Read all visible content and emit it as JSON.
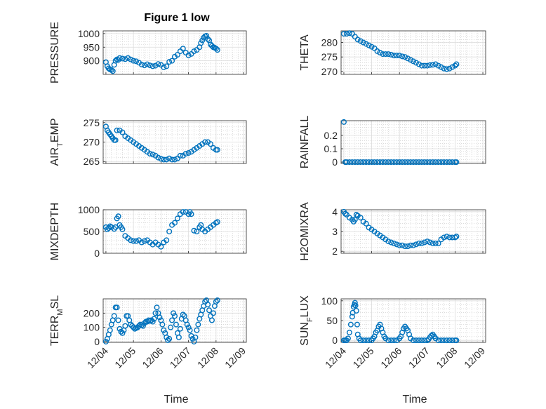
{
  "title": "Figure 1 low",
  "marker_color": "#0072BD",
  "xlabel": "Time",
  "xticks": [
    "12/04",
    "12/05",
    "12/06",
    "12/07",
    "12/08",
    "12/09"
  ],
  "chart_data": [
    {
      "type": "scatter",
      "ylabel": "PRESSURE",
      "ylim": [
        850,
        1010
      ],
      "yticks": [
        900,
        950,
        1000
      ],
      "x": [
        4.0,
        4.05,
        4.1,
        4.15,
        4.2,
        4.25,
        4.3,
        4.35,
        4.4,
        4.45,
        4.5,
        4.6,
        4.7,
        4.8,
        4.9,
        5.0,
        5.1,
        5.2,
        5.3,
        5.4,
        5.5,
        5.6,
        5.7,
        5.8,
        5.9,
        6.0,
        6.1,
        6.2,
        6.3,
        6.4,
        6.5,
        6.6,
        6.7,
        6.8,
        6.9,
        7.0,
        7.1,
        7.2,
        7.3,
        7.4,
        7.45,
        7.5,
        7.55,
        7.6,
        7.65,
        7.7,
        7.75,
        7.8,
        7.85,
        7.9,
        7.95,
        8.0,
        8.05
      ],
      "y": [
        895,
        880,
        872,
        868,
        866,
        862,
        885,
        900,
        905,
        903,
        910,
        908,
        906,
        910,
        905,
        900,
        898,
        893,
        886,
        883,
        887,
        883,
        880,
        882,
        888,
        885,
        876,
        880,
        896,
        900,
        915,
        922,
        935,
        945,
        930,
        920,
        925,
        935,
        940,
        950,
        965,
        975,
        985,
        990,
        992,
        980,
        975,
        960,
        955,
        950,
        948,
        945,
        940
      ]
    },
    {
      "type": "scatter",
      "ylabel": "THETA",
      "ylim": [
        269,
        284
      ],
      "yticks": [
        270,
        275,
        280
      ],
      "x": [
        4.0,
        4.1,
        4.2,
        4.3,
        4.4,
        4.5,
        4.6,
        4.7,
        4.8,
        4.9,
        5.0,
        5.1,
        5.2,
        5.3,
        5.4,
        5.5,
        5.6,
        5.7,
        5.8,
        5.9,
        6.0,
        6.1,
        6.2,
        6.3,
        6.4,
        6.5,
        6.6,
        6.7,
        6.8,
        6.9,
        7.0,
        7.1,
        7.2,
        7.3,
        7.4,
        7.5,
        7.6,
        7.7,
        7.8,
        7.9,
        8.0,
        8.05
      ],
      "y": [
        283,
        283,
        283.2,
        283,
        282,
        281,
        280.5,
        280,
        279.5,
        279,
        278.5,
        278,
        277,
        276.5,
        276,
        276,
        276,
        275.8,
        275.5,
        275.5,
        275.5,
        275.2,
        275,
        274.5,
        274,
        273.5,
        273,
        272.5,
        272,
        272,
        272,
        272.2,
        272.3,
        272.5,
        272,
        271.5,
        271,
        270.8,
        271,
        271.5,
        272,
        272.5
      ]
    },
    {
      "type": "scatter",
      "ylabel": "AIR_TEMP",
      "ylim": [
        264.5,
        275.5
      ],
      "yticks": [
        265,
        270,
        275
      ],
      "x": [
        4.0,
        4.05,
        4.1,
        4.15,
        4.2,
        4.25,
        4.3,
        4.35,
        4.4,
        4.5,
        4.6,
        4.7,
        4.8,
        4.9,
        5.0,
        5.1,
        5.2,
        5.3,
        5.4,
        5.5,
        5.6,
        5.7,
        5.8,
        5.9,
        6.0,
        6.1,
        6.2,
        6.3,
        6.4,
        6.5,
        6.6,
        6.7,
        6.8,
        6.9,
        7.0,
        7.1,
        7.2,
        7.3,
        7.4,
        7.5,
        7.6,
        7.7,
        7.8,
        7.9,
        8.0,
        8.05
      ],
      "y": [
        274,
        273,
        272.5,
        272,
        271.5,
        271,
        270.5,
        270.5,
        273,
        273,
        272.5,
        271.5,
        271,
        270.5,
        270,
        269.5,
        269,
        268.5,
        268,
        267.5,
        267,
        266.8,
        266.5,
        266,
        265.7,
        265.5,
        265.5,
        265.8,
        265.5,
        265.5,
        265.8,
        266.5,
        266.5,
        267,
        267.2,
        267.5,
        268,
        268.5,
        269,
        269.5,
        270,
        270,
        269.5,
        268.5,
        268,
        268
      ]
    },
    {
      "type": "scatter",
      "ylabel": "RAINFALL",
      "ylim": [
        -0.01,
        0.31
      ],
      "yticks": [
        0,
        0.1,
        0.2
      ],
      "x": [
        4.0,
        4.05,
        4.1,
        4.2,
        4.3,
        4.4,
        4.5,
        4.6,
        4.7,
        4.8,
        4.9,
        5.0,
        5.1,
        5.2,
        5.3,
        5.4,
        5.5,
        5.6,
        5.7,
        5.8,
        5.9,
        6.0,
        6.1,
        6.2,
        6.3,
        6.4,
        6.5,
        6.6,
        6.7,
        6.8,
        6.9,
        7.0,
        7.1,
        7.2,
        7.3,
        7.4,
        7.5,
        7.6,
        7.7,
        7.8,
        7.9,
        8.0,
        8.05
      ],
      "y": [
        0.3,
        0,
        0,
        0,
        0,
        0,
        0,
        0,
        0,
        0,
        0,
        0,
        0,
        0,
        0,
        0,
        0,
        0,
        0,
        0,
        0,
        0,
        0,
        0,
        0,
        0,
        0,
        0,
        0,
        0,
        0,
        0,
        0,
        0,
        0,
        0,
        0,
        0,
        0,
        0,
        0,
        0,
        0
      ]
    },
    {
      "type": "scatter",
      "ylabel": "MIXDEPTH",
      "ylim": [
        0,
        1000
      ],
      "yticks": [
        0,
        500,
        1000
      ],
      "x": [
        4.0,
        4.05,
        4.1,
        4.15,
        4.2,
        4.3,
        4.35,
        4.4,
        4.45,
        4.5,
        4.55,
        4.6,
        4.7,
        4.8,
        4.9,
        5.0,
        5.1,
        5.2,
        5.3,
        5.4,
        5.5,
        5.6,
        5.7,
        5.8,
        5.9,
        6.0,
        6.1,
        6.2,
        6.3,
        6.4,
        6.5,
        6.6,
        6.7,
        6.8,
        6.9,
        7.0,
        7.05,
        7.1,
        7.2,
        7.3,
        7.4,
        7.45,
        7.5,
        7.6,
        7.7,
        7.8,
        7.9,
        8.0,
        8.05
      ],
      "y": [
        600,
        550,
        580,
        620,
        600,
        560,
        600,
        800,
        850,
        650,
        600,
        550,
        400,
        350,
        300,
        280,
        280,
        300,
        250,
        280,
        300,
        250,
        200,
        250,
        200,
        150,
        250,
        300,
        500,
        650,
        700,
        800,
        900,
        950,
        950,
        900,
        950,
        900,
        520,
        500,
        600,
        650,
        550,
        500,
        550,
        600,
        650,
        700,
        720
      ]
    },
    {
      "type": "scatter",
      "ylabel": "H2OMIXRA",
      "ylim": [
        1.9,
        4.1
      ],
      "yticks": [
        2,
        3,
        4
      ],
      "x": [
        4.0,
        4.05,
        4.1,
        4.2,
        4.3,
        4.35,
        4.4,
        4.45,
        4.5,
        4.6,
        4.7,
        4.8,
        4.9,
        5.0,
        5.1,
        5.2,
        5.3,
        5.4,
        5.5,
        5.6,
        5.7,
        5.8,
        5.9,
        6.0,
        6.1,
        6.2,
        6.3,
        6.4,
        6.5,
        6.6,
        6.7,
        6.8,
        6.9,
        7.0,
        7.1,
        7.2,
        7.3,
        7.4,
        7.5,
        7.6,
        7.7,
        7.8,
        7.9,
        8.0,
        8.05
      ],
      "y": [
        4.0,
        3.9,
        3.85,
        3.7,
        3.6,
        3.5,
        3.6,
        3.85,
        3.8,
        3.7,
        3.5,
        3.4,
        3.2,
        3.1,
        3.0,
        2.9,
        2.8,
        2.7,
        2.6,
        2.5,
        2.45,
        2.4,
        2.35,
        2.3,
        2.3,
        2.25,
        2.25,
        2.3,
        2.3,
        2.35,
        2.4,
        2.4,
        2.45,
        2.5,
        2.45,
        2.4,
        2.4,
        2.4,
        2.6,
        2.7,
        2.75,
        2.7,
        2.7,
        2.7,
        2.75
      ]
    },
    {
      "type": "scatter",
      "ylabel": "TERR_MSL",
      "ylim": [
        -5,
        300
      ],
      "yticks": [
        0,
        100,
        200
      ],
      "x": [
        4.0,
        4.05,
        4.1,
        4.15,
        4.2,
        4.25,
        4.3,
        4.35,
        4.4,
        4.45,
        4.5,
        4.55,
        4.6,
        4.65,
        4.7,
        4.75,
        4.8,
        4.85,
        4.9,
        4.95,
        5.0,
        5.05,
        5.1,
        5.15,
        5.2,
        5.25,
        5.3,
        5.35,
        5.4,
        5.45,
        5.5,
        5.55,
        5.6,
        5.65,
        5.7,
        5.75,
        5.8,
        5.85,
        5.9,
        5.95,
        6.0,
        6.05,
        6.1,
        6.15,
        6.2,
        6.25,
        6.3,
        6.35,
        6.4,
        6.45,
        6.5,
        6.55,
        6.6,
        6.65,
        6.7,
        6.75,
        6.8,
        6.85,
        6.9,
        6.95,
        7.0,
        7.05,
        7.1,
        7.15,
        7.2,
        7.25,
        7.3,
        7.35,
        7.4,
        7.45,
        7.5,
        7.55,
        7.6,
        7.65,
        7.7,
        7.75,
        7.8,
        7.85,
        7.9,
        7.95,
        8.0,
        8.05
      ],
      "y": [
        0,
        20,
        50,
        80,
        120,
        150,
        180,
        240,
        240,
        150,
        90,
        70,
        60,
        80,
        110,
        180,
        180,
        150,
        120,
        110,
        100,
        90,
        95,
        100,
        110,
        120,
        115,
        110,
        130,
        140,
        140,
        150,
        145,
        150,
        140,
        160,
        200,
        240,
        200,
        170,
        150,
        120,
        80,
        60,
        30,
        10,
        20,
        100,
        150,
        200,
        180,
        120,
        60,
        30,
        90,
        160,
        190,
        180,
        150,
        120,
        100,
        80,
        40,
        20,
        0,
        30,
        80,
        120,
        160,
        190,
        220,
        250,
        280,
        290,
        260,
        220,
        180,
        150,
        200,
        250,
        280,
        290
      ]
    },
    {
      "type": "scatter",
      "ylabel": "SUN_FLUX",
      "ylim": [
        -5,
        105
      ],
      "yticks": [
        0,
        50,
        100
      ],
      "x": [
        4.0,
        4.05,
        4.1,
        4.15,
        4.2,
        4.25,
        4.3,
        4.32,
        4.35,
        4.38,
        4.4,
        4.42,
        4.45,
        4.48,
        4.5,
        4.55,
        4.6,
        4.7,
        4.8,
        4.9,
        5.0,
        5.05,
        5.1,
        5.15,
        5.2,
        5.25,
        5.3,
        5.35,
        5.4,
        5.45,
        5.5,
        5.6,
        5.7,
        5.8,
        5.9,
        6.0,
        6.05,
        6.1,
        6.15,
        6.2,
        6.25,
        6.3,
        6.35,
        6.4,
        6.5,
        6.6,
        6.7,
        6.8,
        6.9,
        7.0,
        7.05,
        7.1,
        7.15,
        7.2,
        7.25,
        7.3,
        7.4,
        7.5,
        7.6,
        7.7,
        7.8,
        7.9,
        8.0,
        8.05
      ],
      "y": [
        0,
        0,
        0,
        5,
        20,
        40,
        60,
        70,
        85,
        90,
        95,
        88,
        75,
        40,
        15,
        5,
        0,
        0,
        0,
        0,
        0,
        5,
        10,
        20,
        25,
        35,
        40,
        30,
        20,
        10,
        5,
        0,
        0,
        0,
        0,
        5,
        10,
        20,
        30,
        35,
        30,
        25,
        15,
        5,
        0,
        0,
        0,
        0,
        0,
        0,
        3,
        8,
        12,
        15,
        10,
        5,
        0,
        0,
        0,
        0,
        0,
        0,
        0,
        0
      ]
    }
  ]
}
